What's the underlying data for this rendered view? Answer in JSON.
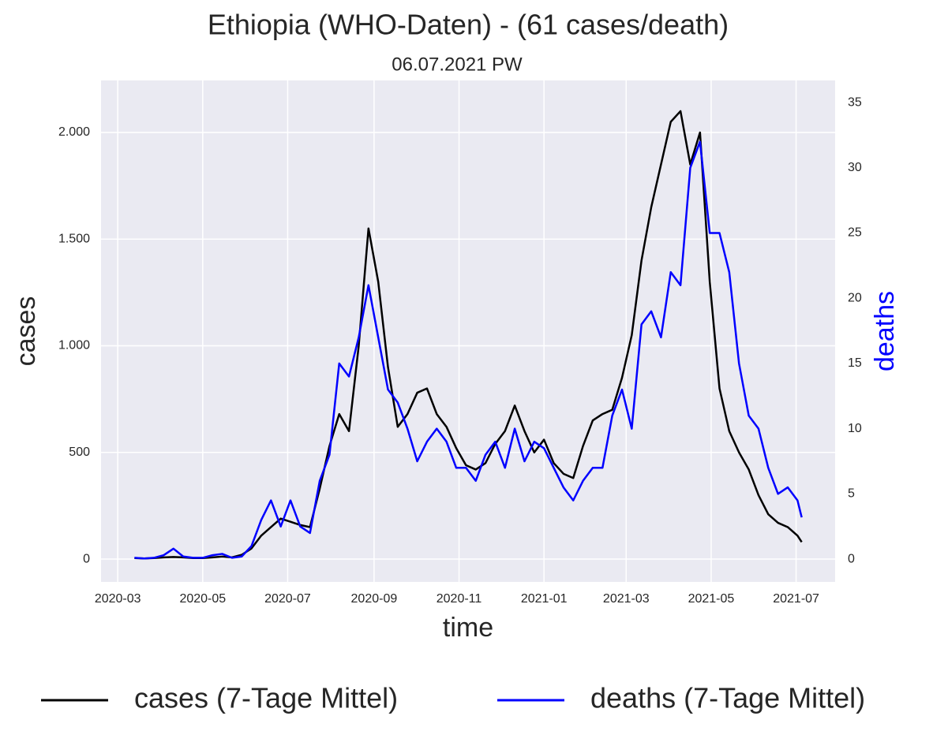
{
  "chart_data": {
    "type": "line",
    "title": "Ethiopia (WHO-Daten) - (61 cases/death)",
    "subtitle": "06.07.2021 PW",
    "x_label": "time",
    "y_label": "cases",
    "y2_label": "deaths",
    "y2_label_color": "#0000ff",
    "x": [
      "2020-03-13",
      "2020-03-20",
      "2020-03-27",
      "2020-04-03",
      "2020-04-10",
      "2020-04-17",
      "2020-04-24",
      "2020-05-01",
      "2020-05-08",
      "2020-05-15",
      "2020-05-22",
      "2020-05-29",
      "2020-06-05",
      "2020-06-12",
      "2020-06-19",
      "2020-06-26",
      "2020-07-03",
      "2020-07-10",
      "2020-07-17",
      "2020-07-24",
      "2020-07-31",
      "2020-08-07",
      "2020-08-14",
      "2020-08-21",
      "2020-08-28",
      "2020-09-04",
      "2020-09-11",
      "2020-09-18",
      "2020-09-25",
      "2020-10-02",
      "2020-10-09",
      "2020-10-16",
      "2020-10-23",
      "2020-10-30",
      "2020-11-06",
      "2020-11-13",
      "2020-11-20",
      "2020-11-27",
      "2020-12-04",
      "2020-12-11",
      "2020-12-18",
      "2020-12-25",
      "2021-01-01",
      "2021-01-08",
      "2021-01-15",
      "2021-01-22",
      "2021-01-29",
      "2021-02-05",
      "2021-02-12",
      "2021-02-19",
      "2021-02-26",
      "2021-03-05",
      "2021-03-12",
      "2021-03-19",
      "2021-03-26",
      "2021-04-02",
      "2021-04-09",
      "2021-04-16",
      "2021-04-23",
      "2021-04-30",
      "2021-05-07",
      "2021-05-14",
      "2021-05-21",
      "2021-05-28",
      "2021-06-04",
      "2021-06-11",
      "2021-06-18",
      "2021-06-25",
      "2021-07-02",
      "2021-07-05"
    ],
    "series": [
      {
        "name": "cases (7-Tage Mittel)",
        "color": "#000000",
        "axis": "y",
        "values": [
          5,
          3,
          5,
          8,
          10,
          8,
          5,
          5,
          8,
          12,
          8,
          20,
          50,
          110,
          150,
          190,
          175,
          160,
          150,
          330,
          530,
          680,
          600,
          1000,
          1550,
          1300,
          900,
          620,
          680,
          780,
          800,
          680,
          620,
          520,
          440,
          420,
          450,
          540,
          600,
          720,
          600,
          500,
          560,
          450,
          400,
          380,
          530,
          650,
          680,
          700,
          850,
          1050,
          1400,
          1650,
          1850,
          2050,
          2100,
          1850,
          2000,
          1300,
          800,
          600,
          500,
          420,
          300,
          210,
          170,
          150,
          110,
          80
        ]
      },
      {
        "name": "deaths (7-Tage Mittel)",
        "color": "#0000ff",
        "axis": "y2",
        "values": [
          0.1,
          0.05,
          0.1,
          0.3,
          0.8,
          0.2,
          0.1,
          0.1,
          0.3,
          0.4,
          0.1,
          0.2,
          1,
          3,
          4.5,
          2.5,
          4.5,
          2.5,
          2,
          6,
          8,
          15,
          14,
          17,
          21,
          17,
          13,
          12,
          10,
          7.5,
          9,
          10,
          9,
          7,
          7,
          6,
          8,
          9,
          7,
          10,
          7.5,
          9,
          8.5,
          7,
          5.5,
          4.5,
          6,
          7,
          7,
          11,
          13,
          10,
          18,
          19,
          17,
          22,
          21,
          30,
          32,
          25,
          25,
          22,
          15,
          11,
          10,
          7,
          5,
          5.5,
          4.5,
          3.2
        ]
      }
    ],
    "xlim": [
      "2020-02-18",
      "2021-07-29"
    ],
    "xticks": [
      "2020-03",
      "2020-05",
      "2020-07",
      "2020-09",
      "2020-11",
      "2021-01",
      "2021-03",
      "2021-05",
      "2021-07"
    ],
    "ylim": [
      -107,
      2244
    ],
    "yticks": [
      0,
      500,
      {
        "value": 1000,
        "label": "1.000"
      },
      {
        "value": 1500,
        "label": "1.500"
      },
      {
        "value": 2000,
        "label": "2.000"
      }
    ],
    "y2lim": [
      -1.75,
      36.7
    ],
    "y2ticks": [
      0,
      5,
      10,
      15,
      20,
      25,
      30,
      35
    ],
    "grid": true,
    "legend": "bottom"
  }
}
